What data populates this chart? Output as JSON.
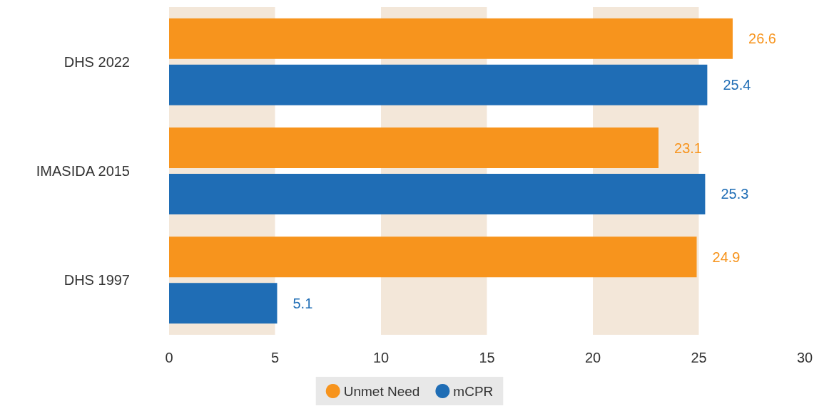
{
  "chart_data": {
    "type": "bar",
    "orientation": "horizontal",
    "categories": [
      "DHS 2022",
      "IMASIDA 2015",
      "DHS 1997"
    ],
    "series": [
      {
        "name": "Unmet Need",
        "color": "#f7941d",
        "values": [
          26.6,
          23.1,
          24.9
        ]
      },
      {
        "name": "mCPR",
        "color": "#1f6db5",
        "values": [
          25.4,
          25.3,
          5.1
        ]
      }
    ],
    "xlim": [
      0,
      30
    ],
    "xticks": [
      0,
      5,
      10,
      15,
      20,
      25,
      30
    ],
    "bands": [
      {
        "axis": "x",
        "from": 0,
        "to": 5,
        "color": "#f3e7d9"
      },
      {
        "axis": "x",
        "from": 10,
        "to": 15,
        "color": "#f3e7d9"
      },
      {
        "axis": "x",
        "from": 20,
        "to": 25,
        "color": "#f3e7d9"
      }
    ],
    "data_labels": true,
    "grid": false,
    "legend": "bottom"
  }
}
